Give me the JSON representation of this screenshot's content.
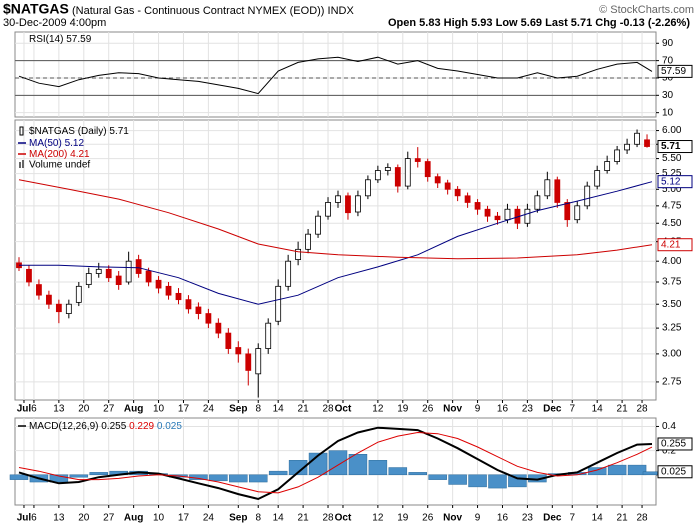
{
  "header": {
    "title": "$NATGAS",
    "subtitle": "(Natural Gas - Continuous Contract NYMEX (EOD)) INDX",
    "copyright": "© StockCharts.com",
    "date": "30-Dec-2009 4:00pm",
    "quote": "Open 5.83 High 5.93 Low 5.69 Last 5.71 Chg -0.13 (-2.26%)"
  },
  "chart_data": [
    {
      "type": "line",
      "xlim": [
        -0.8,
        127.8
      ],
      "ylim": [
        5,
        103
      ],
      "yticks": [
        90,
        70,
        50,
        30,
        10
      ],
      "bands": [
        30,
        70
      ],
      "midline": 50,
      "grid": true,
      "series": [
        {
          "name": "RSI(14)",
          "color": "#000000",
          "x": [
            0,
            4,
            8,
            12,
            16,
            20,
            24,
            28,
            32,
            36,
            40,
            44,
            48,
            52,
            56,
            60,
            64,
            68,
            72,
            76,
            80,
            84,
            88,
            92,
            96,
            100,
            104,
            108,
            112,
            116,
            120,
            124,
            127
          ],
          "values": [
            52,
            44,
            40,
            48,
            53,
            56,
            55,
            50,
            48,
            46,
            42,
            38,
            32,
            58,
            68,
            72,
            74,
            69,
            74,
            66,
            70,
            61,
            58,
            54,
            50,
            50,
            56,
            50,
            52,
            60,
            66,
            68,
            57.59
          ]
        }
      ]
    },
    {
      "type": "candlestick",
      "log_scale": true,
      "grid": true,
      "xlim": [
        -0.8,
        127.8
      ],
      "ylim": [
        2.6,
        6.2
      ],
      "yticks": [
        {
          "value": 2.75,
          "label": "2.75"
        },
        {
          "value": 3,
          "label": "3.00"
        },
        {
          "value": 3.25,
          "label": "3.25"
        },
        {
          "value": 3.5,
          "label": "3.50"
        },
        {
          "value": 3.75,
          "label": "3.75"
        },
        {
          "value": 4,
          "label": "4.00"
        },
        {
          "value": 4.25,
          "label": "4.25"
        },
        {
          "value": 4.5,
          "label": "4.50"
        },
        {
          "value": 4.75,
          "label": "4.75"
        },
        {
          "value": 5,
          "label": "5.00"
        },
        {
          "value": 5.25,
          "label": "5.25"
        },
        {
          "value": 5.5,
          "label": "5.50"
        },
        {
          "value": 5.75,
          "label": "5.75"
        },
        {
          "value": 6,
          "label": "6.00"
        }
      ],
      "xticks": [
        {
          "value": 1,
          "label": "Jul"
        },
        {
          "value": 3,
          "label": "6"
        },
        {
          "value": 8,
          "label": "13"
        },
        {
          "value": 13,
          "label": "20"
        },
        {
          "value": 18,
          "label": "27"
        },
        {
          "value": 23,
          "label": "Aug"
        },
        {
          "value": 28,
          "label": "10"
        },
        {
          "value": 33,
          "label": "17"
        },
        {
          "value": 38,
          "label": "24"
        },
        {
          "value": 44,
          "label": "Sep"
        },
        {
          "value": 48,
          "label": "8"
        },
        {
          "value": 52,
          "label": "14"
        },
        {
          "value": 57,
          "label": "21"
        },
        {
          "value": 62,
          "label": "28"
        },
        {
          "value": 65,
          "label": "Oct"
        },
        {
          "value": 72,
          "label": "12"
        },
        {
          "value": 77,
          "label": "19"
        },
        {
          "value": 82,
          "label": "26"
        },
        {
          "value": 87,
          "label": "Nov"
        },
        {
          "value": 92,
          "label": "9"
        },
        {
          "value": 97,
          "label": "16"
        },
        {
          "value": 102,
          "label": "23"
        },
        {
          "value": 107,
          "label": "Dec"
        },
        {
          "value": 111,
          "label": "7"
        },
        {
          "value": 116,
          "label": "14"
        },
        {
          "value": 121,
          "label": "21"
        },
        {
          "value": 125,
          "label": "28"
        }
      ],
      "up_color": "#000000",
      "down_color": "#cc0000",
      "volume_label": "Volume undef",
      "candles": {
        "name": "$NATGAS (Daily)",
        "x": [
          0,
          2,
          4,
          6,
          8,
          10,
          12,
          14,
          16,
          18,
          20,
          22,
          24,
          26,
          28,
          30,
          32,
          34,
          36,
          38,
          40,
          42,
          44,
          46,
          48,
          50,
          52,
          54,
          56,
          58,
          60,
          62,
          64,
          66,
          68,
          70,
          72,
          74,
          76,
          78,
          80,
          82,
          84,
          86,
          88,
          90,
          92,
          94,
          96,
          98,
          100,
          102,
          104,
          106,
          108,
          110,
          112,
          114,
          116,
          118,
          120,
          122,
          124,
          126
        ],
        "open": [
          3.98,
          3.9,
          3.72,
          3.6,
          3.5,
          3.4,
          3.52,
          3.72,
          3.85,
          3.9,
          3.82,
          3.75,
          4.02,
          3.88,
          3.77,
          3.7,
          3.62,
          3.55,
          3.47,
          3.4,
          3.3,
          3.2,
          3.06,
          3.0,
          2.82,
          3.05,
          3.32,
          3.7,
          4.02,
          4.15,
          4.35,
          4.6,
          4.8,
          4.9,
          4.66,
          4.9,
          5.15,
          5.3,
          5.35,
          5.05,
          5.5,
          5.45,
          5.2,
          5.1,
          5.0,
          4.9,
          4.8,
          4.7,
          4.6,
          4.55,
          4.7,
          4.5,
          4.7,
          4.9,
          5.15,
          4.8,
          4.55,
          4.75,
          5.05,
          5.3,
          5.45,
          5.65,
          5.75,
          5.83
        ],
        "high": [
          4.05,
          3.95,
          3.78,
          3.65,
          3.55,
          3.55,
          3.75,
          3.92,
          3.98,
          3.95,
          3.88,
          4.12,
          4.08,
          3.92,
          3.82,
          3.75,
          3.68,
          3.6,
          3.52,
          3.45,
          3.35,
          3.25,
          3.12,
          3.05,
          3.1,
          3.35,
          3.78,
          4.08,
          4.25,
          4.42,
          4.68,
          4.88,
          4.98,
          4.95,
          4.98,
          5.22,
          5.38,
          5.42,
          5.4,
          5.62,
          5.7,
          5.5,
          5.25,
          5.15,
          5.05,
          4.95,
          4.85,
          4.75,
          4.66,
          4.78,
          4.75,
          4.78,
          4.98,
          5.28,
          5.2,
          4.85,
          4.82,
          5.12,
          5.38,
          5.55,
          5.72,
          5.85,
          6.02,
          5.93
        ],
        "low": [
          3.88,
          3.7,
          3.55,
          3.45,
          3.3,
          3.35,
          3.48,
          3.68,
          3.8,
          3.75,
          3.66,
          3.72,
          3.8,
          3.7,
          3.62,
          3.55,
          3.5,
          3.4,
          3.34,
          3.25,
          3.15,
          3.0,
          2.92,
          2.72,
          2.62,
          3.0,
          3.28,
          3.65,
          3.95,
          4.1,
          4.3,
          4.55,
          4.72,
          4.55,
          4.6,
          4.85,
          5.1,
          5.22,
          4.95,
          5.0,
          5.35,
          5.12,
          5.02,
          4.92,
          4.82,
          4.72,
          4.62,
          4.52,
          4.48,
          4.5,
          4.42,
          4.45,
          4.65,
          4.85,
          4.72,
          4.45,
          4.5,
          4.7,
          5.0,
          5.25,
          5.4,
          5.58,
          5.7,
          5.69
        ],
        "close": [
          3.92,
          3.75,
          3.6,
          3.5,
          3.42,
          3.5,
          3.7,
          3.85,
          3.9,
          3.8,
          3.72,
          4.0,
          3.85,
          3.75,
          3.68,
          3.6,
          3.55,
          3.45,
          3.4,
          3.3,
          3.2,
          3.05,
          3.0,
          2.85,
          3.05,
          3.3,
          3.7,
          4.0,
          4.15,
          4.35,
          4.6,
          4.8,
          4.9,
          4.65,
          4.9,
          5.15,
          5.3,
          5.35,
          5.05,
          5.5,
          5.45,
          5.2,
          5.1,
          5.0,
          4.9,
          4.8,
          4.7,
          4.6,
          4.55,
          4.7,
          4.5,
          4.7,
          4.9,
          5.15,
          4.8,
          4.55,
          4.75,
          5.05,
          5.3,
          5.45,
          5.65,
          5.75,
          5.95,
          5.71
        ]
      },
      "series": [
        {
          "name": "MA(50)",
          "color": "#000080",
          "x": [
            0,
            8,
            16,
            24,
            32,
            40,
            48,
            56,
            64,
            72,
            80,
            88,
            96,
            104,
            112,
            120,
            127
          ],
          "values": [
            3.95,
            3.95,
            3.93,
            3.92,
            3.8,
            3.62,
            3.5,
            3.6,
            3.8,
            3.93,
            4.08,
            4.32,
            4.5,
            4.68,
            4.82,
            4.97,
            5.12
          ]
        },
        {
          "name": "MA(200)",
          "color": "#cc0000",
          "x": [
            0,
            10,
            20,
            30,
            40,
            48,
            56,
            64,
            76,
            88,
            100,
            112,
            120,
            127
          ],
          "values": [
            5.15,
            5.0,
            4.85,
            4.65,
            4.42,
            4.22,
            4.12,
            4.08,
            4.05,
            4.03,
            4.04,
            4.08,
            4.14,
            4.21
          ]
        }
      ]
    },
    {
      "type": "macd",
      "grid": true,
      "xlim": [
        -0.8,
        127.8
      ],
      "ylim": [
        -0.25,
        0.47
      ],
      "yticks": [
        0.4,
        0.2,
        {
          "value": 0,
          "label": "0.0"
        }
      ],
      "xticks": [
        {
          "value": 1,
          "label": "Jul"
        },
        {
          "value": 3,
          "label": "6"
        },
        {
          "value": 8,
          "label": "13"
        },
        {
          "value": 13,
          "label": "20"
        },
        {
          "value": 18,
          "label": "27"
        },
        {
          "value": 23,
          "label": "Aug"
        },
        {
          "value": 28,
          "label": "10"
        },
        {
          "value": 33,
          "label": "17"
        },
        {
          "value": 38,
          "label": "24"
        },
        {
          "value": 44,
          "label": "Sep"
        },
        {
          "value": 48,
          "label": "8"
        },
        {
          "value": 52,
          "label": "14"
        },
        {
          "value": 57,
          "label": "21"
        },
        {
          "value": 62,
          "label": "28"
        },
        {
          "value": 65,
          "label": "Oct"
        },
        {
          "value": 72,
          "label": "12"
        },
        {
          "value": 77,
          "label": "19"
        },
        {
          "value": 82,
          "label": "26"
        },
        {
          "value": 87,
          "label": "Nov"
        },
        {
          "value": 92,
          "label": "9"
        },
        {
          "value": 97,
          "label": "16"
        },
        {
          "value": 102,
          "label": "23"
        },
        {
          "value": 107,
          "label": "Dec"
        },
        {
          "value": 111,
          "label": "7"
        },
        {
          "value": 116,
          "label": "14"
        },
        {
          "value": 121,
          "label": "21"
        },
        {
          "value": 125,
          "label": "28"
        }
      ],
      "title": "MACD(12,26,9)",
      "series": [
        {
          "name": "MACD",
          "type": "line",
          "color": "#000000",
          "x": [
            0,
            4,
            8,
            12,
            16,
            20,
            24,
            28,
            32,
            36,
            40,
            44,
            48,
            52,
            56,
            60,
            64,
            68,
            72,
            76,
            80,
            84,
            88,
            92,
            96,
            100,
            104,
            108,
            112,
            116,
            120,
            124,
            127
          ],
          "values": [
            0.02,
            -0.03,
            -0.07,
            -0.06,
            -0.02,
            0.0,
            0.02,
            0.01,
            -0.03,
            -0.07,
            -0.11,
            -0.16,
            -0.2,
            -0.12,
            0.02,
            0.16,
            0.28,
            0.35,
            0.39,
            0.38,
            0.37,
            0.3,
            0.22,
            0.13,
            0.04,
            -0.03,
            -0.04,
            0.0,
            0.02,
            0.1,
            0.18,
            0.25,
            0.255
          ]
        },
        {
          "name": "Signal",
          "type": "line",
          "color": "#dd0000",
          "x": [
            0,
            4,
            8,
            12,
            16,
            20,
            24,
            28,
            32,
            36,
            40,
            44,
            48,
            52,
            56,
            60,
            64,
            68,
            72,
            76,
            80,
            84,
            88,
            92,
            96,
            100,
            104,
            108,
            112,
            116,
            120,
            124,
            127
          ],
          "values": [
            0.06,
            0.03,
            -0.01,
            -0.04,
            -0.04,
            -0.03,
            -0.01,
            0.0,
            -0.01,
            -0.03,
            -0.06,
            -0.1,
            -0.14,
            -0.15,
            -0.1,
            -0.02,
            0.08,
            0.18,
            0.27,
            0.32,
            0.35,
            0.34,
            0.3,
            0.23,
            0.15,
            0.07,
            0.02,
            -0.01,
            0.0,
            0.04,
            0.1,
            0.17,
            0.229
          ]
        },
        {
          "name": "Histogram",
          "type": "bar",
          "color": "#4a90c8",
          "x": [
            0,
            4,
            8,
            12,
            16,
            20,
            24,
            28,
            32,
            36,
            40,
            44,
            48,
            52,
            56,
            60,
            64,
            68,
            72,
            76,
            80,
            84,
            88,
            92,
            96,
            100,
            104,
            108,
            112,
            116,
            120,
            124,
            127
          ],
          "values": [
            -0.04,
            -0.06,
            -0.06,
            -0.02,
            0.02,
            0.03,
            0.03,
            0.01,
            -0.02,
            -0.04,
            -0.05,
            -0.06,
            -0.06,
            0.03,
            0.12,
            0.18,
            0.2,
            0.17,
            0.12,
            0.06,
            0.02,
            -0.04,
            -0.08,
            -0.1,
            -0.11,
            -0.1,
            -0.06,
            0.01,
            0.02,
            0.06,
            0.08,
            0.08,
            0.025
          ]
        }
      ]
    }
  ]
}
